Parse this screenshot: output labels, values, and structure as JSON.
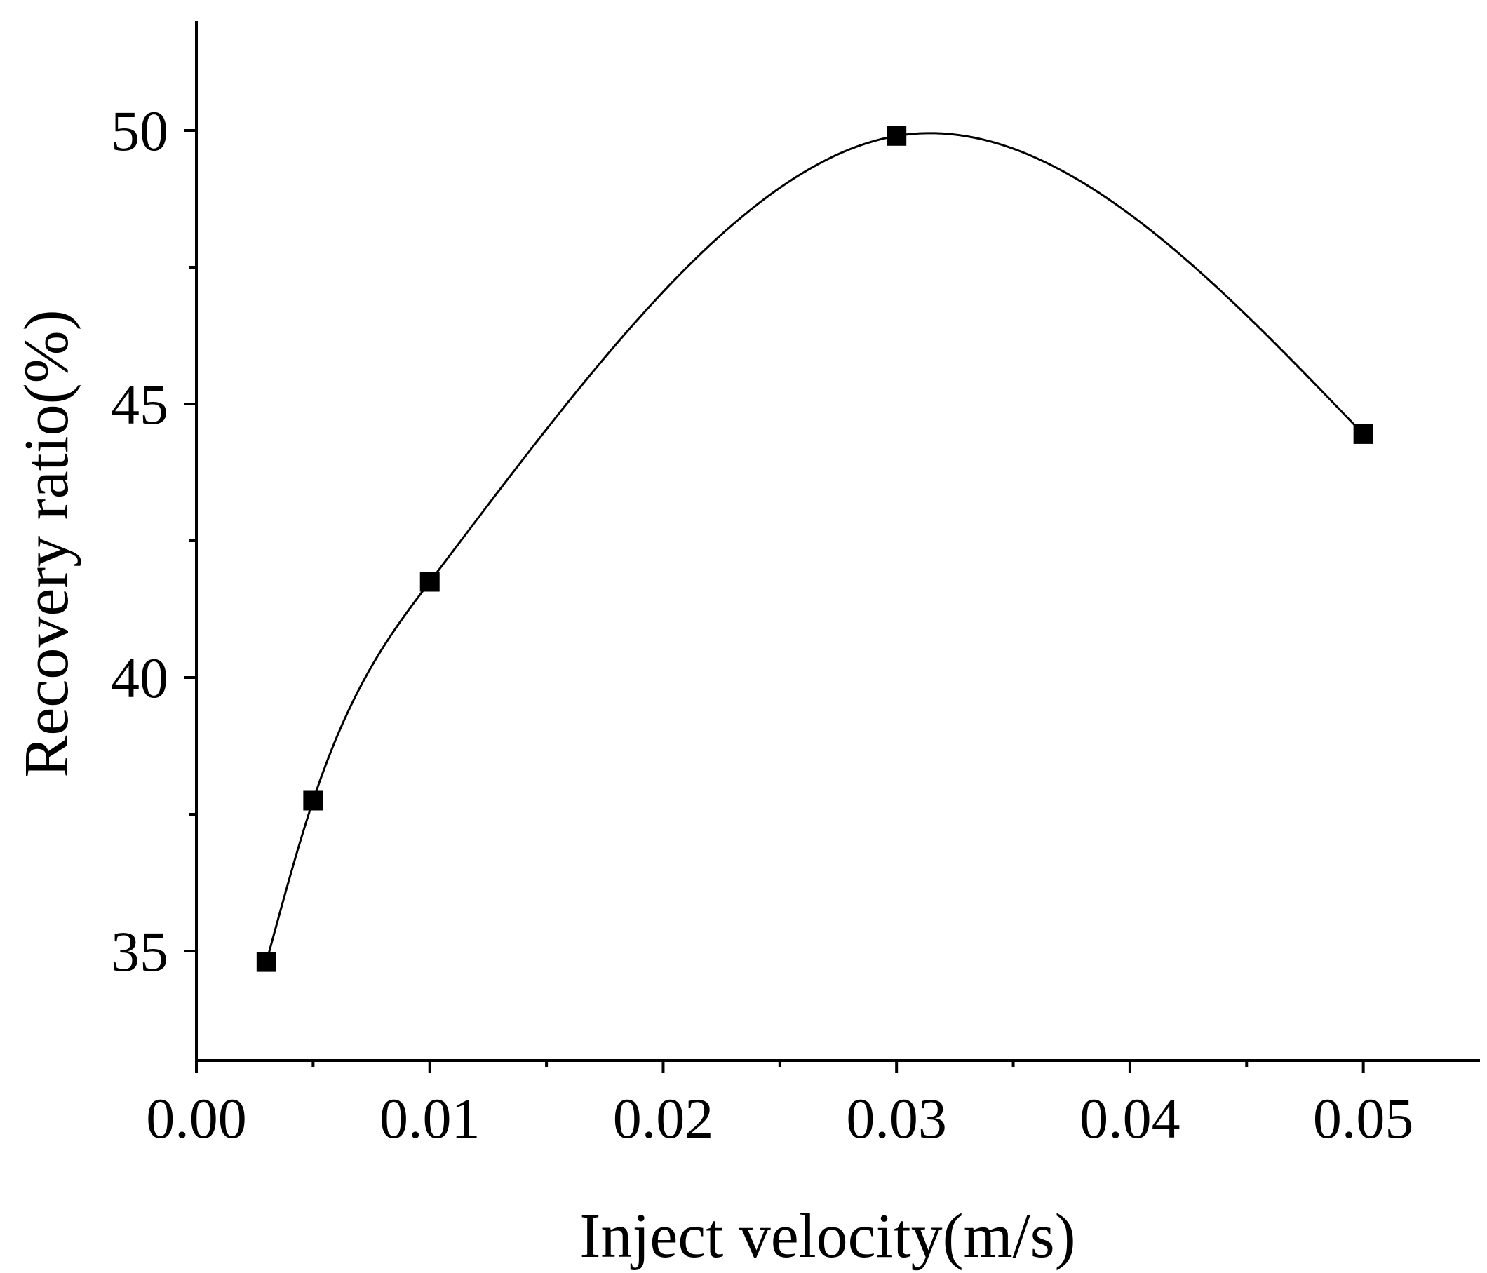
{
  "chart_data": {
    "type": "line",
    "title": "",
    "xlabel": "Inject velocity(m/s)",
    "ylabel": "Recovery ratio(%)",
    "xlim": [
      0.0,
      0.055
    ],
    "ylim": [
      33,
      52
    ],
    "x_major_ticks": [
      0.0,
      0.01,
      0.02,
      0.03,
      0.04,
      0.05
    ],
    "x_tick_labels": [
      "0.00",
      "0.01",
      "0.02",
      "0.03",
      "0.04",
      "0.05"
    ],
    "x_minor_ticks": [
      0.005,
      0.015,
      0.025,
      0.035,
      0.045
    ],
    "y_major_ticks": [
      35,
      40,
      45,
      50
    ],
    "y_tick_labels": [
      "35",
      "40",
      "45",
      "50"
    ],
    "y_minor_ticks": [
      37.5,
      42.5,
      47.5
    ],
    "grid": false,
    "series": [
      {
        "name": "Recovery ratio",
        "marker": "square",
        "color": "#000000",
        "x": [
          0.003,
          0.005,
          0.01,
          0.03,
          0.05
        ],
        "y": [
          34.8,
          37.75,
          41.75,
          49.9,
          44.45
        ]
      }
    ]
  }
}
